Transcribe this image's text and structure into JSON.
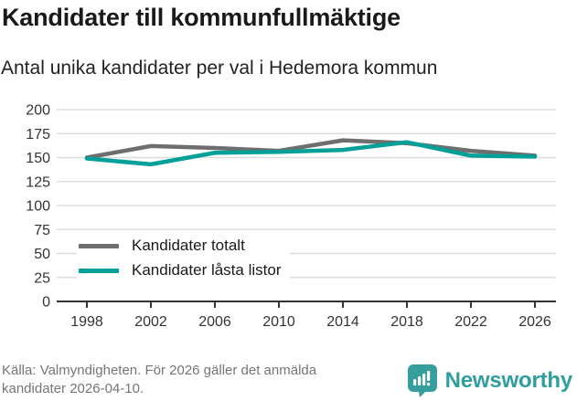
{
  "header": {
    "title": "Kandidater till kommunfullmäktige",
    "subtitle": "Antal unika kandidater per val i Hedemora kommun"
  },
  "chart_data": {
    "type": "line",
    "title": "Kandidater till kommunfullmäktige",
    "subtitle": "Antal unika kandidater per val i Hedemora kommun",
    "x": [
      1998,
      2002,
      2006,
      2010,
      2014,
      2018,
      2022,
      2026
    ],
    "series": [
      {
        "name": "Kandidater totalt",
        "color": "#6e6e6e",
        "values": [
          150,
          162,
          160,
          157,
          168,
          165,
          157,
          152
        ]
      },
      {
        "name": "Kandidater låsta listor",
        "color": "#00a099",
        "values": [
          149,
          143,
          155,
          156,
          158,
          166,
          152,
          151
        ]
      }
    ],
    "xlabel": "",
    "ylabel": "",
    "ylim": [
      0,
      200
    ],
    "ytick_step": 25,
    "grid": true,
    "legend_position": "inside-lower-left",
    "colors": {
      "gridline": "#dddddd",
      "axis": "#333333",
      "tick_label": "#333333"
    }
  },
  "footer": {
    "source_line1": "Källa: Valmyndigheten. För 2026 gäller det anmälda",
    "source_line2": "kandidater 2026-04-10.",
    "brand": "Newsworthy"
  }
}
